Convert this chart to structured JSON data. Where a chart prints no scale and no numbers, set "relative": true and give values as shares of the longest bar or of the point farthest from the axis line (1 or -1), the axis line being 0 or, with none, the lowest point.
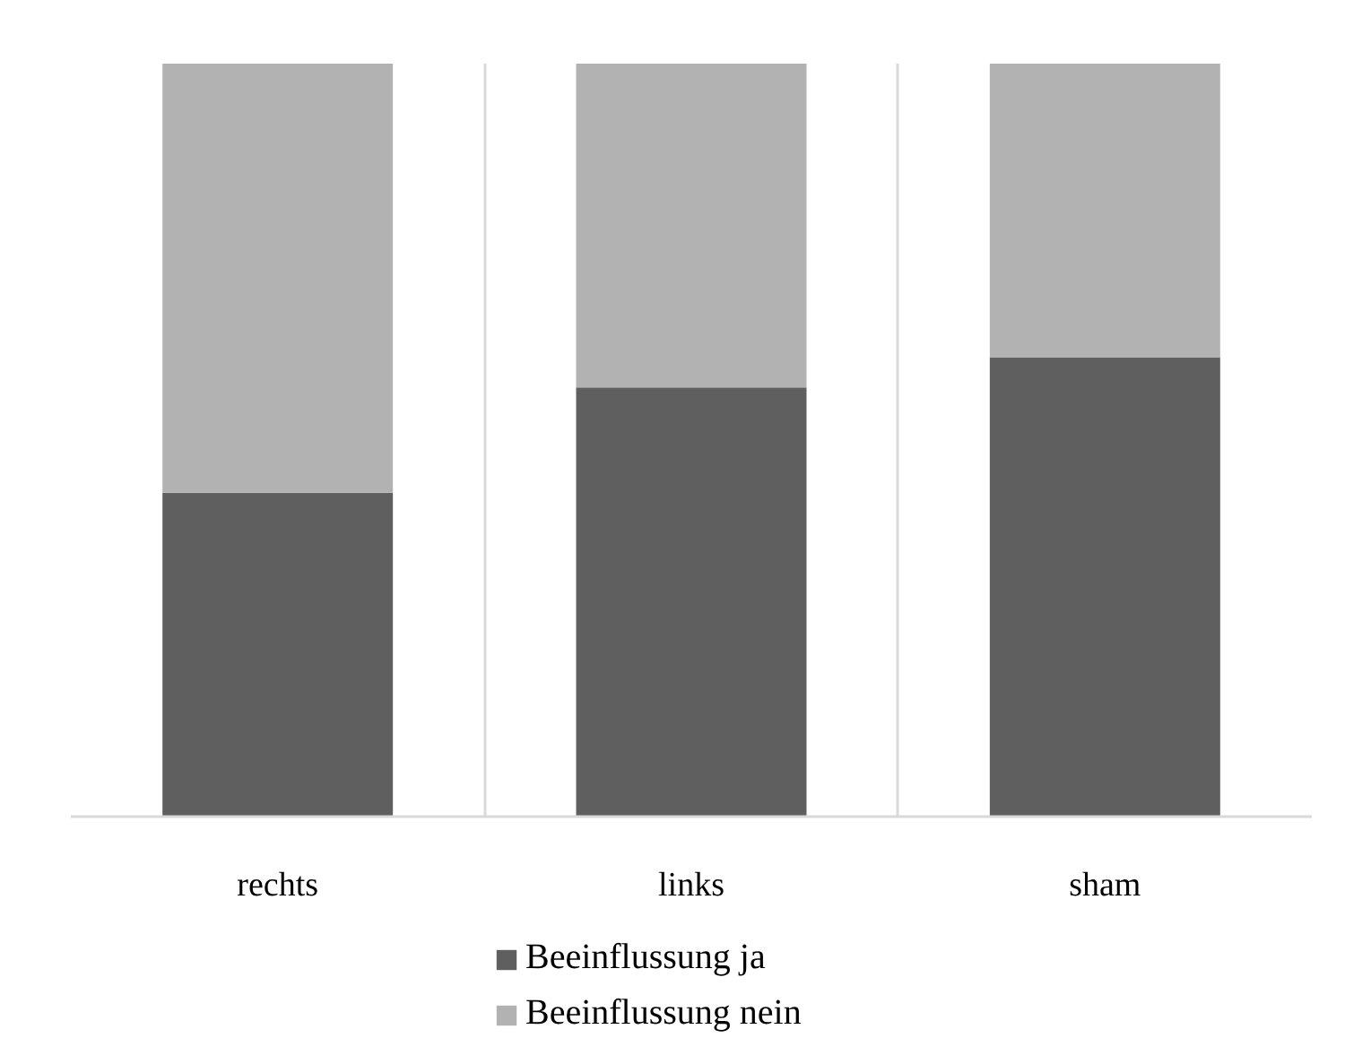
{
  "chart_data": {
    "type": "bar",
    "stacked": true,
    "relative": true,
    "categories": [
      "rechts",
      "links",
      "sham"
    ],
    "series": [
      {
        "name": "Beeinflussung ja",
        "color": "#5f5f5f",
        "values": [
          0.43,
          0.57,
          0.61
        ]
      },
      {
        "name": "Beeinflussung nein",
        "color": "#b2b2b2",
        "values": [
          0.57,
          0.43,
          0.39
        ]
      }
    ],
    "grid": "x",
    "legend": "bottom"
  }
}
